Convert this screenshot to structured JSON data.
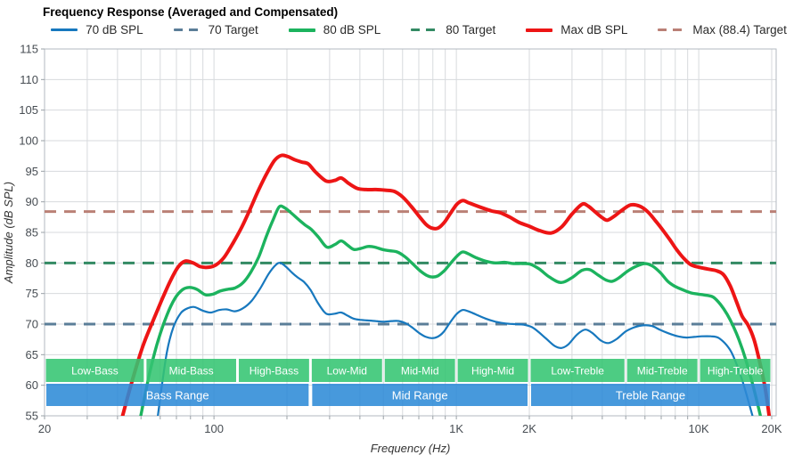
{
  "title": "Frequency Response (Averaged and Compensated)",
  "legend": {
    "items": [
      {
        "label": "70 dB SPL",
        "color": "#1778be",
        "style": "solid",
        "weight": 3
      },
      {
        "label": "70 Target",
        "color": "#5b7e98",
        "style": "dashed",
        "weight": 3
      },
      {
        "label": "80 dB SPL",
        "color": "#1cb35e",
        "style": "solid",
        "weight": 4
      },
      {
        "label": "80 Target",
        "color": "#338a63",
        "style": "dashed",
        "weight": 3
      },
      {
        "label": "Max dB SPL",
        "color": "#ed1515",
        "style": "solid",
        "weight": 4
      },
      {
        "label": "Max (88.4) Target",
        "color": "#ba8076",
        "style": "dashed",
        "weight": 3
      }
    ]
  },
  "chart_data": {
    "type": "line",
    "title": "Frequency Response (Averaged and Compensated)",
    "xlabel": "Frequency (Hz)",
    "ylabel": "Amplitude (dB SPL)",
    "x_scale": "log",
    "xlim": [
      20,
      20000
    ],
    "ylim": [
      55,
      115
    ],
    "y_tick_step": 5,
    "grid": true,
    "x_ticks": [
      {
        "f": 20,
        "label": "20"
      },
      {
        "f": 100,
        "label": "100"
      },
      {
        "f": 1000,
        "label": "1K"
      },
      {
        "f": 2000,
        "label": "2K"
      },
      {
        "f": 10000,
        "label": "10K"
      },
      {
        "f": 20000,
        "label": "20K"
      }
    ],
    "x_gridlines": [
      30,
      40,
      50,
      60,
      70,
      80,
      90,
      100,
      200,
      300,
      400,
      500,
      600,
      700,
      800,
      900,
      1000,
      2000,
      3000,
      4000,
      5000,
      6000,
      7000,
      8000,
      9000,
      10000,
      20000
    ],
    "targets": [
      {
        "label": "70 Target",
        "value": 70,
        "color": "#5b7e98"
      },
      {
        "label": "80 Target",
        "value": 80,
        "color": "#338a63"
      },
      {
        "label": "Max (88.4) Target",
        "value": 88.4,
        "color": "#ba8076"
      }
    ],
    "series": [
      {
        "name": "70 dB SPL",
        "color": "#1778be",
        "width": 2.2,
        "points": [
          [
            58,
            53.5
          ],
          [
            61,
            60
          ],
          [
            64,
            65.5
          ],
          [
            68,
            69.5
          ],
          [
            73,
            71.8
          ],
          [
            78,
            72.6
          ],
          [
            83,
            72.8
          ],
          [
            90,
            72.2
          ],
          [
            97,
            71.9
          ],
          [
            105,
            72.3
          ],
          [
            113,
            72.4
          ],
          [
            122,
            72.1
          ],
          [
            132,
            72.6
          ],
          [
            143,
            73.8
          ],
          [
            155,
            75.8
          ],
          [
            168,
            78.2
          ],
          [
            180,
            79.7
          ],
          [
            188,
            80.0
          ],
          [
            198,
            79.4
          ],
          [
            210,
            78.4
          ],
          [
            222,
            77.6
          ],
          [
            235,
            76.9
          ],
          [
            250,
            75.6
          ],
          [
            268,
            73.5
          ],
          [
            285,
            72.0
          ],
          [
            296,
            71.6
          ],
          [
            315,
            71.7
          ],
          [
            335,
            71.9
          ],
          [
            355,
            71.4
          ],
          [
            376,
            70.9
          ],
          [
            400,
            70.7
          ],
          [
            430,
            70.6
          ],
          [
            465,
            70.5
          ],
          [
            500,
            70.4
          ],
          [
            540,
            70.5
          ],
          [
            580,
            70.5
          ],
          [
            620,
            70.1
          ],
          [
            660,
            69.4
          ],
          [
            705,
            68.5
          ],
          [
            750,
            67.9
          ],
          [
            792,
            67.7
          ],
          [
            835,
            67.9
          ],
          [
            885,
            68.7
          ],
          [
            940,
            70.2
          ],
          [
            1000,
            71.6
          ],
          [
            1060,
            72.3
          ],
          [
            1120,
            72.1
          ],
          [
            1200,
            71.6
          ],
          [
            1320,
            70.9
          ],
          [
            1450,
            70.4
          ],
          [
            1600,
            70.1
          ],
          [
            1750,
            70.0
          ],
          [
            1900,
            69.9
          ],
          [
            2050,
            69.5
          ],
          [
            2200,
            68.6
          ],
          [
            2350,
            67.6
          ],
          [
            2550,
            66.4
          ],
          [
            2720,
            66.1
          ],
          [
            2900,
            66.7
          ],
          [
            3150,
            68.3
          ],
          [
            3400,
            69.1
          ],
          [
            3650,
            68.5
          ],
          [
            3950,
            67.3
          ],
          [
            4250,
            66.9
          ],
          [
            4600,
            67.6
          ],
          [
            5000,
            68.8
          ],
          [
            5450,
            69.5
          ],
          [
            5900,
            69.8
          ],
          [
            6400,
            69.7
          ],
          [
            6900,
            69.1
          ],
          [
            7500,
            68.5
          ],
          [
            8200,
            68.0
          ],
          [
            8900,
            67.8
          ],
          [
            9600,
            67.9
          ],
          [
            10300,
            68.0
          ],
          [
            11200,
            68.0
          ],
          [
            12000,
            67.8
          ],
          [
            12800,
            66.9
          ],
          [
            13600,
            65.5
          ],
          [
            14400,
            63.2
          ],
          [
            15200,
            60.5
          ],
          [
            16000,
            57.5
          ],
          [
            16800,
            54.5
          ]
        ]
      },
      {
        "name": "80 dB SPL",
        "color": "#1cb35e",
        "width": 3.4,
        "points": [
          [
            49,
            53.5
          ],
          [
            52,
            58.5
          ],
          [
            55,
            63
          ],
          [
            59,
            67.5
          ],
          [
            64,
            71.5
          ],
          [
            69,
            74.2
          ],
          [
            74,
            75.6
          ],
          [
            79,
            76.0
          ],
          [
            85,
            75.7
          ],
          [
            92,
            74.8
          ],
          [
            99,
            74.9
          ],
          [
            106,
            75.4
          ],
          [
            114,
            75.7
          ],
          [
            122,
            75.9
          ],
          [
            132,
            76.8
          ],
          [
            142,
            78.5
          ],
          [
            153,
            81.0
          ],
          [
            165,
            84.5
          ],
          [
            176,
            87.2
          ],
          [
            186,
            89.2
          ],
          [
            196,
            89.0
          ],
          [
            208,
            88.2
          ],
          [
            222,
            87.2
          ],
          [
            238,
            86.2
          ],
          [
            252,
            85.5
          ],
          [
            270,
            84.2
          ],
          [
            292,
            82.6
          ],
          [
            315,
            83.0
          ],
          [
            335,
            83.6
          ],
          [
            356,
            82.9
          ],
          [
            378,
            82.2
          ],
          [
            405,
            82.4
          ],
          [
            432,
            82.7
          ],
          [
            460,
            82.6
          ],
          [
            495,
            82.2
          ],
          [
            530,
            82.0
          ],
          [
            570,
            81.8
          ],
          [
            610,
            81.1
          ],
          [
            655,
            80.0
          ],
          [
            705,
            78.8
          ],
          [
            752,
            78.0
          ],
          [
            795,
            77.7
          ],
          [
            840,
            77.9
          ],
          [
            890,
            78.7
          ],
          [
            945,
            79.9
          ],
          [
            1005,
            81.1
          ],
          [
            1060,
            81.8
          ],
          [
            1120,
            81.5
          ],
          [
            1200,
            80.9
          ],
          [
            1320,
            80.3
          ],
          [
            1450,
            80.0
          ],
          [
            1580,
            80.1
          ],
          [
            1720,
            79.9
          ],
          [
            1870,
            79.9
          ],
          [
            2020,
            79.8
          ],
          [
            2200,
            79.0
          ],
          [
            2420,
            77.7
          ],
          [
            2700,
            76.8
          ],
          [
            3000,
            77.6
          ],
          [
            3300,
            78.8
          ],
          [
            3550,
            78.9
          ],
          [
            3850,
            78.0
          ],
          [
            4150,
            77.2
          ],
          [
            4400,
            77.0
          ],
          [
            4700,
            77.6
          ],
          [
            5100,
            78.7
          ],
          [
            5550,
            79.5
          ],
          [
            6000,
            79.9
          ],
          [
            6450,
            79.5
          ],
          [
            6950,
            78.4
          ],
          [
            7450,
            77.0
          ],
          [
            7950,
            76.2
          ],
          [
            8600,
            75.6
          ],
          [
            9300,
            75.1
          ],
          [
            10000,
            74.9
          ],
          [
            10800,
            74.7
          ],
          [
            11500,
            74.4
          ],
          [
            12300,
            73.2
          ],
          [
            13100,
            71.6
          ],
          [
            13900,
            69.6
          ],
          [
            14700,
            67.3
          ],
          [
            15600,
            64.3
          ],
          [
            16600,
            60.5
          ],
          [
            17600,
            56.5
          ],
          [
            18200,
            54.0
          ]
        ]
      },
      {
        "name": "Max dB SPL",
        "color": "#ed1515",
        "width": 4,
        "points": [
          [
            41,
            53.5
          ],
          [
            44,
            58
          ],
          [
            47,
            62
          ],
          [
            51,
            66.5
          ],
          [
            56,
            70.5
          ],
          [
            61,
            74
          ],
          [
            66,
            77
          ],
          [
            71,
            79.3
          ],
          [
            76,
            80.3
          ],
          [
            82,
            80.0
          ],
          [
            88,
            79.4
          ],
          [
            95,
            79.3
          ],
          [
            102,
            79.7
          ],
          [
            110,
            80.9
          ],
          [
            120,
            83.3
          ],
          [
            130,
            85.8
          ],
          [
            141,
            88.8
          ],
          [
            153,
            92.0
          ],
          [
            166,
            94.8
          ],
          [
            178,
            96.8
          ],
          [
            190,
            97.6
          ],
          [
            202,
            97.4
          ],
          [
            215,
            96.9
          ],
          [
            230,
            96.5
          ],
          [
            245,
            96.2
          ],
          [
            262,
            94.9
          ],
          [
            290,
            93.4
          ],
          [
            315,
            93.5
          ],
          [
            335,
            93.9
          ],
          [
            360,
            93.0
          ],
          [
            390,
            92.2
          ],
          [
            425,
            92.0
          ],
          [
            465,
            92.0
          ],
          [
            510,
            91.9
          ],
          [
            555,
            91.7
          ],
          [
            600,
            90.8
          ],
          [
            650,
            89.3
          ],
          [
            700,
            87.7
          ],
          [
            750,
            86.3
          ],
          [
            792,
            85.7
          ],
          [
            840,
            85.7
          ],
          [
            890,
            86.6
          ],
          [
            945,
            88.1
          ],
          [
            1005,
            89.6
          ],
          [
            1065,
            90.2
          ],
          [
            1130,
            89.8
          ],
          [
            1260,
            89.1
          ],
          [
            1400,
            88.5
          ],
          [
            1520,
            88.2
          ],
          [
            1660,
            87.5
          ],
          [
            1820,
            86.6
          ],
          [
            2000,
            86.0
          ],
          [
            2200,
            85.3
          ],
          [
            2460,
            84.9
          ],
          [
            2720,
            85.9
          ],
          [
            3000,
            88.0
          ],
          [
            3300,
            89.6
          ],
          [
            3500,
            89.3
          ],
          [
            3750,
            88.3
          ],
          [
            4000,
            87.4
          ],
          [
            4200,
            87.0
          ],
          [
            4500,
            87.7
          ],
          [
            4850,
            88.7
          ],
          [
            5250,
            89.5
          ],
          [
            5700,
            89.3
          ],
          [
            6150,
            88.4
          ],
          [
            6600,
            87.0
          ],
          [
            7100,
            85.4
          ],
          [
            7600,
            83.8
          ],
          [
            8100,
            82.2
          ],
          [
            8700,
            80.7
          ],
          [
            9300,
            79.7
          ],
          [
            10000,
            79.3
          ],
          [
            10900,
            79.0
          ],
          [
            11900,
            78.7
          ],
          [
            12700,
            78.0
          ],
          [
            13500,
            76.2
          ],
          [
            14300,
            73.7
          ],
          [
            15100,
            71.3
          ],
          [
            16000,
            69.8
          ],
          [
            16900,
            67.5
          ],
          [
            17800,
            64.0
          ],
          [
            18800,
            59.5
          ],
          [
            19600,
            54.5
          ]
        ]
      }
    ],
    "bands": {
      "sub_color": "#35c573",
      "range_color": "#2e8bd8",
      "sub": [
        {
          "label": "Low-Bass",
          "f1": 20,
          "f2": 52
        },
        {
          "label": "Mid-Bass",
          "f1": 52,
          "f2": 125
        },
        {
          "label": "High-Bass",
          "f1": 125,
          "f2": 250
        },
        {
          "label": "Low-Mid",
          "f1": 250,
          "f2": 500
        },
        {
          "label": "Mid-Mid",
          "f1": 500,
          "f2": 1000
        },
        {
          "label": "High-Mid",
          "f1": 1000,
          "f2": 2000
        },
        {
          "label": "Low-Treble",
          "f1": 2000,
          "f2": 5000
        },
        {
          "label": "Mid-Treble",
          "f1": 5000,
          "f2": 10000
        },
        {
          "label": "High-Treble",
          "f1": 10000,
          "f2": 20000
        }
      ],
      "ranges": [
        {
          "label": "Bass Range",
          "f1": 20,
          "f2": 250
        },
        {
          "label": "Mid Range",
          "f1": 250,
          "f2": 2000
        },
        {
          "label": "Treble Range",
          "f1": 2000,
          "f2": 20000
        }
      ]
    }
  }
}
